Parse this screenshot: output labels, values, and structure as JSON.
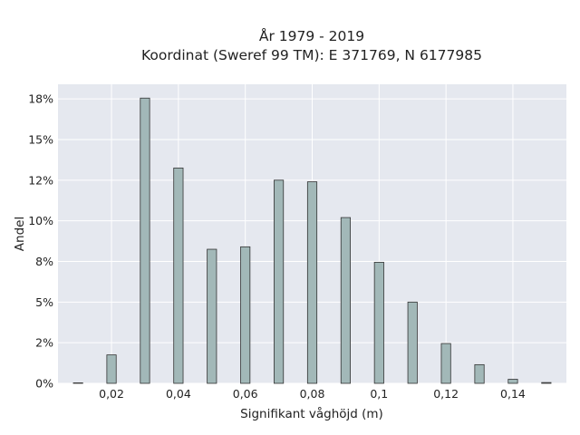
{
  "chart_data": {
    "type": "bar",
    "title_line1": "År 1979 - 2019",
    "title_line2": "Koordinat (Sweref 99 TM): E 371769, N 6177985",
    "xlabel": "Signifikant våghöjd (m)",
    "ylabel": "Andel",
    "xlim": [
      0.004,
      0.156
    ],
    "ylim": [
      0,
      0.184
    ],
    "x_ticks": [
      0.02,
      0.04,
      0.06,
      0.08,
      0.1,
      0.12,
      0.14
    ],
    "x_tick_labels": [
      "0,02",
      "0,04",
      "0,06",
      "0,08",
      "0,1",
      "0,12",
      "0,14"
    ],
    "y_ticks": [
      0,
      0.025,
      0.05,
      0.075,
      0.1,
      0.125,
      0.15,
      0.175
    ],
    "y_tick_labels": [
      "0%",
      "2%",
      "5%",
      "8%",
      "10%",
      "12%",
      "15%",
      "18%"
    ],
    "bar_width": 0.0028,
    "x": [
      0.01,
      0.02,
      0.03,
      0.04,
      0.05,
      0.06,
      0.07,
      0.08,
      0.09,
      0.1,
      0.11,
      0.12,
      0.13,
      0.14,
      0.15
    ],
    "values": [
      0.0003,
      0.0175,
      0.1755,
      0.1325,
      0.0825,
      0.084,
      0.125,
      0.124,
      0.102,
      0.0745,
      0.05,
      0.0245,
      0.0115,
      0.0025,
      0.0005
    ],
    "grid": true,
    "colors": {
      "plot_bg": "#e5e8ef",
      "bar": "#a2b8b8",
      "bar_edge": "#333333"
    }
  }
}
